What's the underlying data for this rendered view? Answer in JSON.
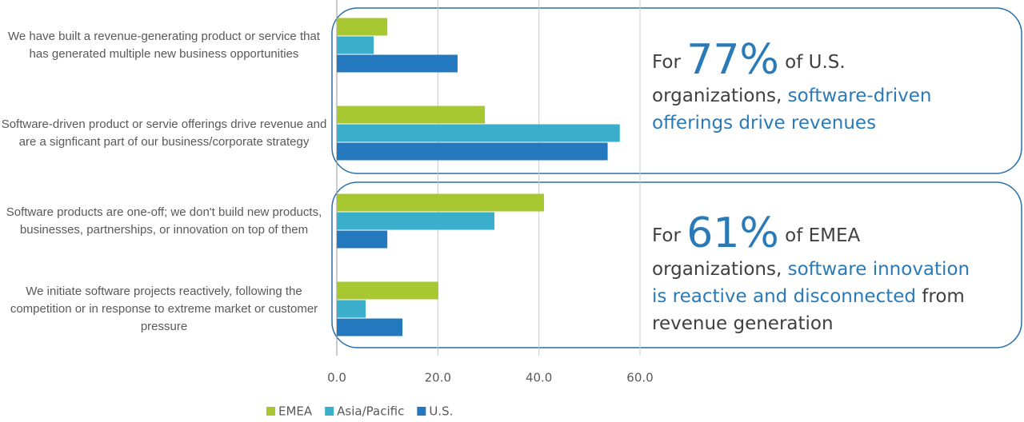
{
  "chart_data": {
    "type": "bar",
    "orientation": "horizontal",
    "categories": [
      "We have built a revenue-generating product or service that has generated multiple new business opportunities",
      "Software-driven product or servie offerings drive revenue and are a signficant part of our business/corporate strategy",
      "Software products are one-off; we don't build new products, businesses, partnerships, or innovation on top of them",
      "We initiate software projects reactively, following the competition or in response to extreme market or customer pressure"
    ],
    "series": [
      {
        "name": "EMEA",
        "color": "#a8c832",
        "values": [
          10.0,
          29.3,
          41.0,
          20.1
        ]
      },
      {
        "name": "Asia/Pacific",
        "color": "#3aaecb",
        "values": [
          7.3,
          56.0,
          31.2,
          5.7
        ]
      },
      {
        "name": "U.S.",
        "color": "#2378be",
        "values": [
          23.9,
          53.6,
          10.0,
          13.0
        ]
      }
    ],
    "xlim": [
      0,
      60
    ],
    "xticks": [
      {
        "value": 0,
        "label": "0.0"
      },
      {
        "value": 20,
        "label": "20.0"
      },
      {
        "value": 40,
        "label": "40.0"
      },
      {
        "value": 60,
        "label": "60.0"
      }
    ],
    "grid": true,
    "legend": "bottom",
    "annotations": [
      {
        "lines": [
          [
            {
              "text": "For ",
              "style": "plain"
            },
            {
              "text": "77%",
              "style": "big"
            },
            {
              "text": " of U.S.",
              "style": "plain"
            }
          ],
          [
            {
              "text": "organizations, ",
              "style": "plain"
            },
            {
              "text": "software-driven",
              "style": "highlight"
            }
          ],
          [
            {
              "text": "offerings drive revenues",
              "style": "highlight"
            }
          ]
        ]
      },
      {
        "lines": [
          [
            {
              "text": "For ",
              "style": "plain"
            },
            {
              "text": "61%",
              "style": "big"
            },
            {
              "text": " of EMEA",
              "style": "plain"
            }
          ],
          [
            {
              "text": "organizations, ",
              "style": "plain"
            },
            {
              "text": "software innovation",
              "style": "highlight"
            }
          ],
          [
            {
              "text": "is reactive and disconnected",
              "style": "highlight"
            },
            {
              "text": " from",
              "style": "plain"
            }
          ],
          [
            {
              "text": "revenue generation",
              "style": "plain"
            }
          ]
        ]
      }
    ]
  }
}
